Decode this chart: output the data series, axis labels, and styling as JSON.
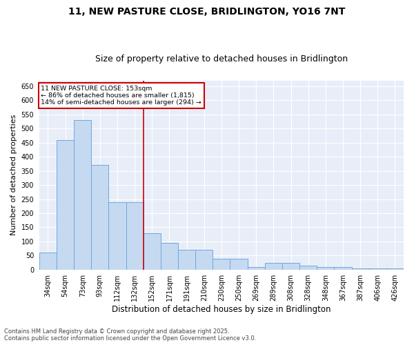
{
  "title1": "11, NEW PASTURE CLOSE, BRIDLINGTON, YO16 7NT",
  "title2": "Size of property relative to detached houses in Bridlington",
  "xlabel": "Distribution of detached houses by size in Bridlington",
  "ylabel": "Number of detached properties",
  "categories": [
    "34sqm",
    "54sqm",
    "73sqm",
    "93sqm",
    "112sqm",
    "132sqm",
    "152sqm",
    "171sqm",
    "191sqm",
    "210sqm",
    "230sqm",
    "250sqm",
    "269sqm",
    "289sqm",
    "308sqm",
    "328sqm",
    "348sqm",
    "367sqm",
    "387sqm",
    "406sqm",
    "426sqm"
  ],
  "values": [
    60,
    460,
    530,
    370,
    240,
    240,
    130,
    95,
    70,
    70,
    38,
    38,
    10,
    25,
    25,
    15,
    10,
    10,
    5,
    5,
    5
  ],
  "bar_color": "#c5d9f1",
  "bar_edge_color": "#6fa8dc",
  "vline_x_index": 6,
  "vline_color": "#cc0000",
  "annotation_line1": "11 NEW PASTURE CLOSE: 153sqm",
  "annotation_line2": "← 86% of detached houses are smaller (1,815)",
  "annotation_line3": "14% of semi-detached houses are larger (294) →",
  "annotation_box_color": "#ffffff",
  "annotation_box_edge": "#cc0000",
  "ylim": [
    0,
    670
  ],
  "yticks": [
    0,
    50,
    100,
    150,
    200,
    250,
    300,
    350,
    400,
    450,
    500,
    550,
    600,
    650
  ],
  "background_color": "#e8eef8",
  "footer1": "Contains HM Land Registry data © Crown copyright and database right 2025.",
  "footer2": "Contains public sector information licensed under the Open Government Licence v3.0.",
  "title1_fontsize": 10,
  "title2_fontsize": 9,
  "tick_fontsize": 7,
  "xlabel_fontsize": 8.5,
  "ylabel_fontsize": 8,
  "footer_fontsize": 6
}
